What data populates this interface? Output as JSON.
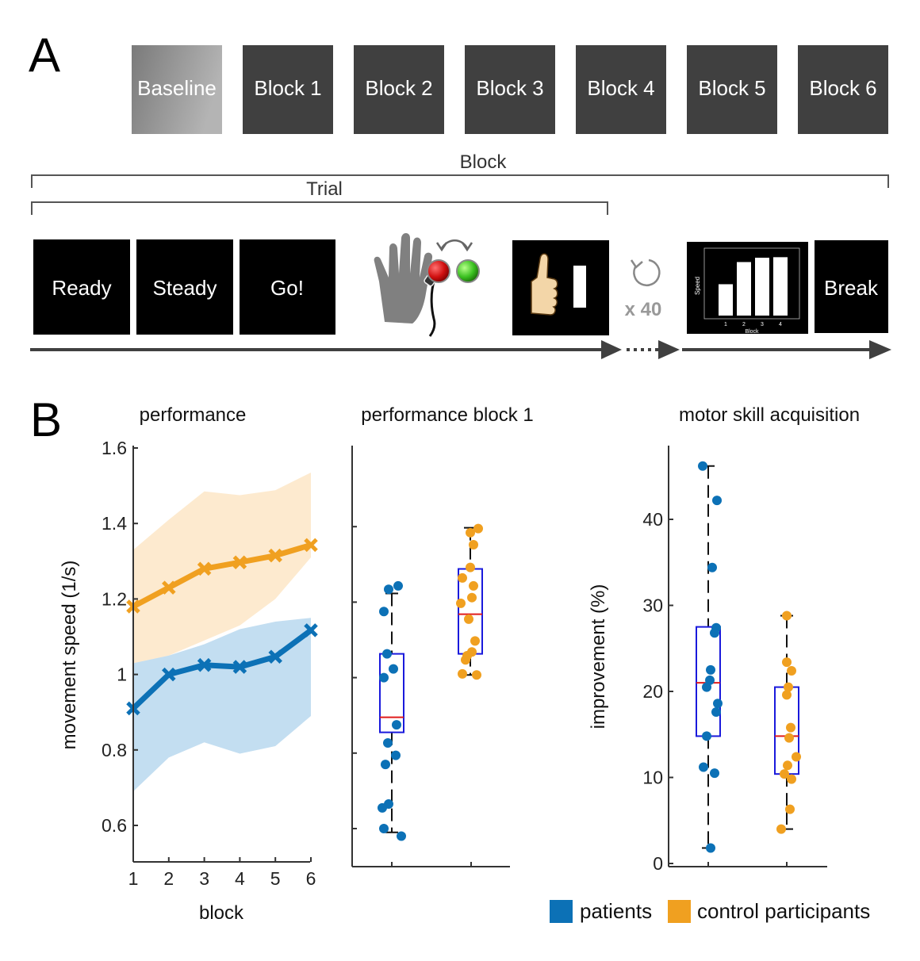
{
  "panel_a": {
    "letter": "A",
    "blocks": [
      "Baseline",
      "Block 1",
      "Block 2",
      "Block 3",
      "Block 4",
      "Block 5",
      "Block 6"
    ],
    "block_bracket_label": "Block",
    "trial_bracket_label": "Trial",
    "stages": [
      "Ready",
      "Steady",
      "Go!"
    ],
    "repeat_label": "x 40",
    "break_label": "Break",
    "mini_chart": {
      "ylabel": "Speed",
      "xlabel": "Block",
      "categories": [
        "1",
        "2",
        "3",
        "4"
      ],
      "values": [
        0.58,
        0.99,
        1.07,
        1.08
      ]
    },
    "icons": [
      "hand-icon",
      "red-button-icon",
      "green-button-icon",
      "swap-arrows-icon",
      "thumbs-up-icon",
      "repeat-icon"
    ]
  },
  "panel_b": {
    "letter": "B",
    "legend": [
      {
        "label": "patients",
        "color": "#0c71b6"
      },
      {
        "label": "control participants",
        "color": "#f0a020"
      }
    ]
  },
  "chart_data": [
    {
      "type": "line",
      "title": "performance",
      "xlabel": "block",
      "ylabel": "movement speed (1/s)",
      "x": [
        1,
        2,
        3,
        4,
        5,
        6
      ],
      "xticks": [
        "1",
        "2",
        "3",
        "4",
        "5",
        "6"
      ],
      "yticks": [
        "0.6",
        "0.8",
        "1",
        "1.2",
        "1.4",
        "1.6"
      ],
      "ylim": [
        0.52,
        1.6
      ],
      "series": [
        {
          "name": "patients",
          "color": "#0c71b6",
          "values": [
            0.91,
            1.0,
            1.025,
            1.02,
            1.047,
            1.117
          ],
          "band_low": [
            0.69,
            0.78,
            0.82,
            0.79,
            0.81,
            0.89
          ],
          "band_high": [
            1.03,
            1.05,
            1.08,
            1.12,
            1.14,
            1.15
          ]
        },
        {
          "name": "control participants",
          "color": "#f0a020",
          "values": [
            1.18,
            1.23,
            1.28,
            1.297,
            1.315,
            1.343
          ],
          "band_low": [
            1.03,
            1.05,
            1.09,
            1.13,
            1.2,
            1.31
          ],
          "band_high": [
            1.33,
            1.41,
            1.485,
            1.475,
            1.488,
            1.535
          ]
        }
      ]
    },
    {
      "type": "box",
      "title": "performance block 1",
      "ylim": [
        0.52,
        1.6
      ],
      "groups": [
        {
          "name": "patients",
          "color": "#0c71b6",
          "box": {
            "q1": 0.855,
            "median": 0.895,
            "q3": 1.063,
            "whisker_low": 0.59,
            "whisker_high": 1.223
          },
          "points": [
            {
              "x": -0.1,
              "y": 0.6
            },
            {
              "x": 0.12,
              "y": 0.58
            },
            {
              "x": -0.12,
              "y": 0.655
            },
            {
              "x": -0.04,
              "y": 0.665
            },
            {
              "x": -0.08,
              "y": 0.77
            },
            {
              "x": 0.05,
              "y": 0.794
            },
            {
              "x": -0.05,
              "y": 0.827
            },
            {
              "x": 0.06,
              "y": 0.875
            },
            {
              "x": -0.1,
              "y": 1.0
            },
            {
              "x": -0.06,
              "y": 1.063
            },
            {
              "x": 0.02,
              "y": 1.023
            },
            {
              "x": -0.1,
              "y": 1.175
            },
            {
              "x": -0.04,
              "y": 1.234
            },
            {
              "x": 0.08,
              "y": 1.243
            }
          ]
        },
        {
          "name": "control participants",
          "color": "#f0a020",
          "box": {
            "q1": 1.063,
            "median": 1.168,
            "q3": 1.288,
            "whisker_low": 1.007,
            "whisker_high": 1.397
          },
          "points": [
            {
              "x": -0.1,
              "y": 1.01
            },
            {
              "x": 0.08,
              "y": 1.007
            },
            {
              "x": -0.06,
              "y": 1.047
            },
            {
              "x": -0.04,
              "y": 1.058
            },
            {
              "x": 0.02,
              "y": 1.068
            },
            {
              "x": 0.06,
              "y": 1.097
            },
            {
              "x": -0.02,
              "y": 1.155
            },
            {
              "x": -0.12,
              "y": 1.197
            },
            {
              "x": 0.02,
              "y": 1.212
            },
            {
              "x": 0.04,
              "y": 1.243
            },
            {
              "x": -0.1,
              "y": 1.264
            },
            {
              "x": 0.0,
              "y": 1.292
            },
            {
              "x": 0.04,
              "y": 1.352
            },
            {
              "x": 0.0,
              "y": 1.384
            },
            {
              "x": 0.1,
              "y": 1.395
            }
          ]
        }
      ]
    },
    {
      "type": "box",
      "title": "motor skill acquisition",
      "ylabel": "improvement (%)",
      "yticks": [
        "0",
        "10",
        "20",
        "30",
        "40"
      ],
      "ylim": [
        0,
        49
      ],
      "groups": [
        {
          "name": "patients",
          "color": "#0c71b6",
          "box": {
            "q1": 14.8,
            "median": 21.0,
            "q3": 27.5,
            "whisker_low": 1.8,
            "whisker_high": 46.2
          },
          "points": [
            {
              "x": -0.07,
              "y": 46.2
            },
            {
              "x": 0.11,
              "y": 42.2
            },
            {
              "x": 0.05,
              "y": 34.4
            },
            {
              "x": 0.1,
              "y": 27.4
            },
            {
              "x": 0.08,
              "y": 26.8
            },
            {
              "x": 0.03,
              "y": 22.5
            },
            {
              "x": 0.02,
              "y": 21.3
            },
            {
              "x": -0.02,
              "y": 20.5
            },
            {
              "x": 0.12,
              "y": 18.6
            },
            {
              "x": 0.1,
              "y": 17.6
            },
            {
              "x": -0.02,
              "y": 14.8
            },
            {
              "x": -0.06,
              "y": 11.2
            },
            {
              "x": 0.08,
              "y": 10.5
            },
            {
              "x": 0.03,
              "y": 1.8
            }
          ]
        },
        {
          "name": "control participants",
          "color": "#f0a020",
          "box": {
            "q1": 10.4,
            "median": 14.8,
            "q3": 20.5,
            "whisker_low": 4.0,
            "whisker_high": 28.8
          },
          "points": [
            {
              "x": 0.0,
              "y": 28.8
            },
            {
              "x": 0.0,
              "y": 23.4
            },
            {
              "x": 0.06,
              "y": 22.4
            },
            {
              "x": 0.02,
              "y": 20.5
            },
            {
              "x": 0.0,
              "y": 19.6
            },
            {
              "x": 0.05,
              "y": 15.8
            },
            {
              "x": 0.03,
              "y": 14.6
            },
            {
              "x": 0.12,
              "y": 12.4
            },
            {
              "x": 0.01,
              "y": 11.4
            },
            {
              "x": -0.03,
              "y": 10.4
            },
            {
              "x": 0.06,
              "y": 9.8
            },
            {
              "x": 0.04,
              "y": 6.3
            },
            {
              "x": -0.07,
              "y": 4.0
            }
          ]
        }
      ]
    }
  ]
}
